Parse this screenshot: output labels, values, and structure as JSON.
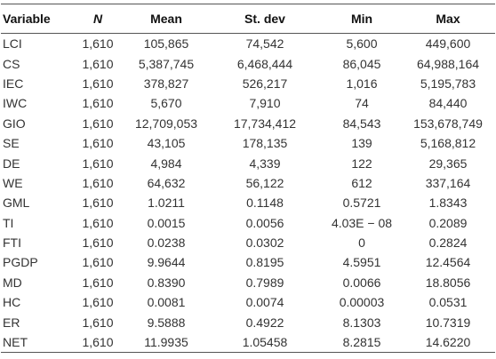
{
  "table": {
    "header": [
      "Variable",
      "N",
      "Mean",
      "St. dev",
      "Min",
      "Max"
    ],
    "rows": [
      [
        "LCI",
        "1,610",
        "105,865",
        "74,542",
        "5,600",
        "449,600"
      ],
      [
        "CS",
        "1,610",
        "5,387,745",
        "6,468,444",
        "86,045",
        "64,988,164"
      ],
      [
        "IEC",
        "1,610",
        "378,827",
        "526,217",
        "1,016",
        "5,195,783"
      ],
      [
        "IWC",
        "1,610",
        "5,670",
        "7,910",
        "74",
        "84,440"
      ],
      [
        "GIO",
        "1,610",
        "12,709,053",
        "17,734,412",
        "84,543",
        "153,678,749"
      ],
      [
        "SE",
        "1,610",
        "43,105",
        "178,135",
        "139",
        "5,168,812"
      ],
      [
        "DE",
        "1,610",
        "4,984",
        "4,339",
        "122",
        "29,365"
      ],
      [
        "WE",
        "1,610",
        "64,632",
        "56,122",
        "612",
        "337,164"
      ],
      [
        "GML",
        "1,610",
        "1.0211",
        "0.1148",
        "0.5721",
        "1.8343"
      ],
      [
        "TI",
        "1,610",
        "0.0015",
        "0.0056",
        "4.03E − 08",
        "0.2089"
      ],
      [
        "FTI",
        "1,610",
        "0.0238",
        "0.0302",
        "0",
        "0.2824"
      ],
      [
        "PGDP",
        "1,610",
        "9.9644",
        "0.8195",
        "4.5951",
        "12.4564"
      ],
      [
        "MD",
        "1,610",
        "0.8390",
        "0.7989",
        "0.0066",
        "18.8056"
      ],
      [
        "HC",
        "1,610",
        "0.0081",
        "0.0074",
        "0.00003",
        "0.0531"
      ],
      [
        "ER",
        "1,610",
        "9.5888",
        "0.4922",
        "8.1303",
        "10.7319"
      ],
      [
        "NET",
        "1,610",
        "11.9935",
        "1.05458",
        "8.2815",
        "14.6220"
      ]
    ]
  }
}
